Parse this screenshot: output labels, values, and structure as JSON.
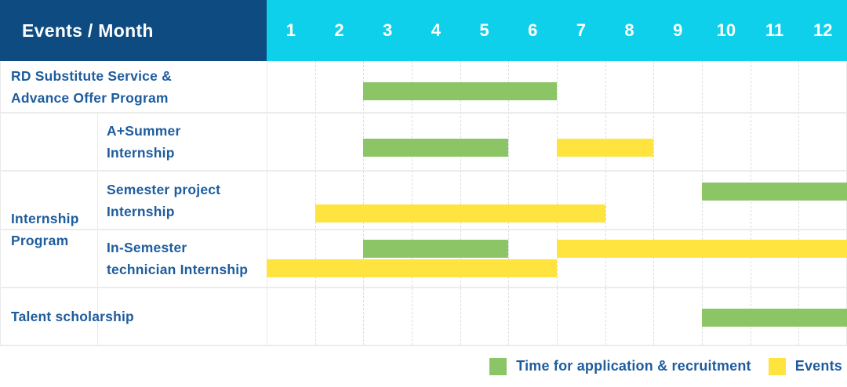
{
  "title": "Events / Month",
  "months": [
    "1",
    "2",
    "3",
    "4",
    "5",
    "6",
    "7",
    "8",
    "9",
    "10",
    "11",
    "12"
  ],
  "colors": {
    "header_bg": "#0E4B81",
    "months_bg": "#0FD0EA",
    "header_text": "#FFFFFF",
    "label_text": "#1E5C9E",
    "application": "#8BC566",
    "event": "#FFE440",
    "grid_line": "#ECECEC"
  },
  "group": {
    "label_lines": [
      "Internship",
      "Program"
    ]
  },
  "rows": [
    {
      "label_lines": [
        "RD Substitute Service &",
        "Advance Offer Program"
      ],
      "in_group": false,
      "bars": [
        {
          "kind": "application",
          "start": 3,
          "end": 6,
          "lane": 0
        }
      ]
    },
    {
      "label_lines": [
        "A+Summer",
        "Internship"
      ],
      "in_group": true,
      "bars": [
        {
          "kind": "application",
          "start": 3,
          "end": 5,
          "lane": 0
        },
        {
          "kind": "event",
          "start": 7,
          "end": 8,
          "lane": 0
        }
      ]
    },
    {
      "label_lines": [
        "Semester project",
        "Internship"
      ],
      "in_group": true,
      "bars": [
        {
          "kind": "application",
          "start": 10,
          "end": 12,
          "lane": 0
        },
        {
          "kind": "event",
          "start": 2,
          "end": 7,
          "lane": 1
        }
      ]
    },
    {
      "label_lines": [
        "In-Semester",
        "technician Internship"
      ],
      "in_group": true,
      "bars": [
        {
          "kind": "application",
          "start": 3,
          "end": 5,
          "lane": 0
        },
        {
          "kind": "event",
          "start": 7,
          "end": 12,
          "lane": 0
        },
        {
          "kind": "event",
          "start": 1,
          "end": 6,
          "lane": 1
        }
      ]
    },
    {
      "label_lines": [
        "Talent scholarship"
      ],
      "in_group": false,
      "bars": [
        {
          "kind": "application",
          "start": 10,
          "end": 12,
          "lane": 0
        }
      ]
    }
  ],
  "legend": [
    {
      "kind": "application",
      "label": "Time for application & recruitment"
    },
    {
      "kind": "event",
      "label": "Events"
    }
  ],
  "chart_data": {
    "type": "gantt",
    "title": "Events / Month",
    "x": {
      "label": "Month",
      "ticks": [
        1,
        2,
        3,
        4,
        5,
        6,
        7,
        8,
        9,
        10,
        11,
        12
      ],
      "range": [
        1,
        12
      ]
    },
    "grid": true,
    "legend_position": "bottom-right",
    "categories": [
      "RD Substitute Service & Advance Offer Program",
      "A+Summer Internship",
      "Semester project Internship",
      "In-Semester technician Internship",
      "Talent scholarship"
    ],
    "groups": [
      {
        "label": "Internship Program",
        "members": [
          "A+Summer Internship",
          "Semester project Internship",
          "In-Semester technician Internship"
        ]
      }
    ],
    "series": [
      {
        "name": "Time for application & recruitment",
        "color": "#8BC566",
        "spans": [
          {
            "task": "RD Substitute Service & Advance Offer Program",
            "start_month": 3,
            "end_month": 6
          },
          {
            "task": "A+Summer Internship",
            "start_month": 3,
            "end_month": 5
          },
          {
            "task": "Semester project Internship",
            "start_month": 10,
            "end_month": 12
          },
          {
            "task": "In-Semester technician Internship",
            "start_month": 3,
            "end_month": 5
          },
          {
            "task": "Talent scholarship",
            "start_month": 10,
            "end_month": 12
          }
        ]
      },
      {
        "name": "Events",
        "color": "#FFE440",
        "spans": [
          {
            "task": "A+Summer Internship",
            "start_month": 7,
            "end_month": 8
          },
          {
            "task": "Semester project Internship",
            "start_month": 2,
            "end_month": 7
          },
          {
            "task": "In-Semester technician Internship",
            "start_month": 1,
            "end_month": 6
          },
          {
            "task": "In-Semester technician Internship",
            "start_month": 7,
            "end_month": 12
          }
        ]
      }
    ]
  }
}
